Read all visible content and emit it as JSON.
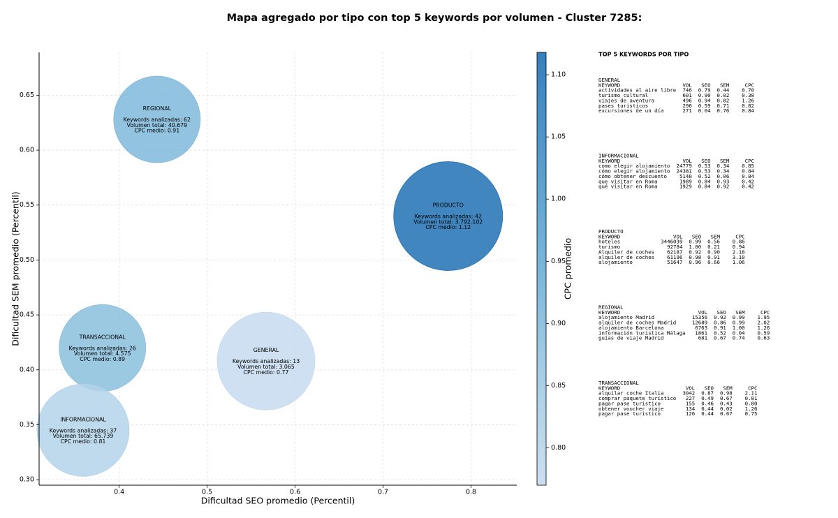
{
  "chart_data": {
    "type": "bubble",
    "title": "Mapa agregado por tipo con top 5 keywords por volumen - Cluster 7285:",
    "xlabel": "Dificultad SEO promedio (Percentil)",
    "ylabel": "Dificultad SEM promedio (Percentil)",
    "labels": [
      "REGIONAL",
      "PRODUCTO",
      "TRANSACCIONAL",
      "GENERAL",
      "INFORMACIONAL"
    ],
    "x": [
      0.443,
      0.774,
      0.381,
      0.567,
      0.359
    ],
    "y": [
      0.628,
      0.54,
      0.42,
      0.408,
      0.345
    ],
    "sizes": [
      62,
      78,
      62,
      70,
      66
    ],
    "c": [
      0.91,
      1.12,
      0.89,
      0.77,
      0.81
    ],
    "annotations": [
      [
        "Keywords analizadas: 62",
        "Volumen total: 40.679",
        "CPC medio: 0.91"
      ],
      [
        "Keywords analizadas: 42",
        "Volumen total: 3.792.102",
        "CPC medio: 1.12"
      ],
      [
        "Keywords analizadas: 26",
        "Volumen total: 4.575",
        "CPC medio: 0.89"
      ],
      [
        "Keywords analizadas: 13",
        "Volumen total: 3.065",
        "CPC medio: 0.77"
      ],
      [
        "Keywords analizadas: 37",
        "Volumen total: 65.739",
        "CPC medio: 0.81"
      ]
    ],
    "colormap": "Blues",
    "clim": [
      0.77,
      1.118
    ],
    "cticks": [
      {
        "value": 0.8,
        "label": "0.80"
      },
      0.85,
      {
        "value": 0.9,
        "label": "0.90"
      },
      0.95,
      {
        "value": 1.0,
        "label": "1.00"
      },
      1.05,
      {
        "value": 1.1,
        "label": "1.10"
      }
    ],
    "colorbar_label": "CPC promedio",
    "xlim": [
      0.309,
      0.852
    ],
    "xticks": [
      0.4,
      0.5,
      0.6,
      0.7,
      0.8
    ],
    "ylim": [
      0.295,
      0.689
    ],
    "yticks": [
      {
        "value": 0.3,
        "label": "0.30"
      },
      0.35,
      {
        "value": 0.4,
        "label": "0.40"
      },
      0.45,
      {
        "value": 0.5,
        "label": "0.50"
      },
      0.55,
      {
        "value": 0.6,
        "label": "0.60"
      },
      0.65
    ],
    "grid": true
  },
  "panel": {
    "title": "TOP 5 KEYWORDS POR TIPO",
    "tables": [
      {
        "title": "GENERAL",
        "columns": [
          "KEYWORD",
          "VOL",
          "SEO",
          "SEM",
          "CPC"
        ],
        "rows": [
          [
            "actividades al aire libre",
            "746",
            "0.79",
            "0.44",
            "0.70"
          ],
          [
            "turismo cultural",
            "601",
            "0.90",
            "0.02",
            "0.38"
          ],
          [
            "viajes de aventura",
            "496",
            "0.94",
            "0.82",
            "1.26"
          ],
          [
            "pases turísticos",
            "296",
            "0.59",
            "0.71",
            "0.82"
          ],
          [
            "excursiones de un día",
            "271",
            "0.04",
            "0.76",
            "0.84"
          ]
        ]
      },
      {
        "title": "INFORMACIONAL",
        "columns": [
          "KEYWORD",
          "VOL",
          "SEO",
          "SEM",
          "CPC"
        ],
        "rows": [
          [
            "como elegir alojamiento",
            "24779",
            "0.53",
            "0.34",
            "0.85"
          ],
          [
            "cómo elegir alojamiento",
            "24381",
            "0.53",
            "0.34",
            "0.84"
          ],
          [
            "cómo obtener descuento",
            "5140",
            "0.52",
            "0.06",
            "0.84"
          ],
          [
            "que visitar en Roma",
            "1989",
            "0.84",
            "0.93",
            "0.42"
          ],
          [
            "qué visitar en Roma",
            "1929",
            "0.84",
            "0.92",
            "0.42"
          ]
        ]
      },
      {
        "title": "PRODUCTO",
        "columns": [
          "KEYWORD",
          "VOL",
          "SEO",
          "SEM",
          "CPC"
        ],
        "rows": [
          [
            "hoteles",
            "3446039",
            "0.99",
            "0.56",
            "0.86"
          ],
          [
            "turismo",
            "92784",
            "1.00",
            "0.21",
            "0.94"
          ],
          [
            "Alquiler de coches",
            "62187",
            "0.92",
            "0.90",
            "2.18"
          ],
          [
            "alquiler de coches",
            "61196",
            "0.98",
            "0.91",
            "3.10"
          ],
          [
            "alojamiento",
            "51647",
            "0.96",
            "0.66",
            "1.06"
          ]
        ]
      },
      {
        "title": "REGIONAL",
        "columns": [
          "KEYWORD",
          "VOL",
          "SEO",
          "SEM",
          "CPC"
        ],
        "rows": [
          [
            "alojamiento Madrid",
            "15356",
            "0.92",
            "0.99",
            "1.95"
          ],
          [
            "alquiler de coches Madrid",
            "12689",
            "0.86",
            "0.99",
            "2.02"
          ],
          [
            "alojamiento Barcelona",
            "6763",
            "0.91",
            "1.00",
            "1.26"
          ],
          [
            "información turística Málaga",
            "1861",
            "0.52",
            "0.04",
            "0.59"
          ],
          [
            "guías de viaje Madrid",
            "681",
            "0.67",
            "0.74",
            "0.63"
          ]
        ]
      },
      {
        "title": "TRANSACCIONAL",
        "columns": [
          "KEYWORD",
          "VOL",
          "SEO",
          "SEM",
          "CPC"
        ],
        "rows": [
          [
            "alquilar coche Italia",
            "3042",
            "0.87",
            "0.98",
            "2.11"
          ],
          [
            "comprar paquete turístico",
            "227",
            "0.49",
            "0.67",
            "0.81"
          ],
          [
            "pagar pase turístico",
            "155",
            "0.46",
            "0.43",
            "0.80"
          ],
          [
            "obtener voucher viaje",
            "134",
            "0.44",
            "0.02",
            "1.26"
          ],
          [
            "pagar pase turistico",
            "126",
            "0.44",
            "0.67",
            "0.75"
          ]
        ]
      }
    ]
  }
}
